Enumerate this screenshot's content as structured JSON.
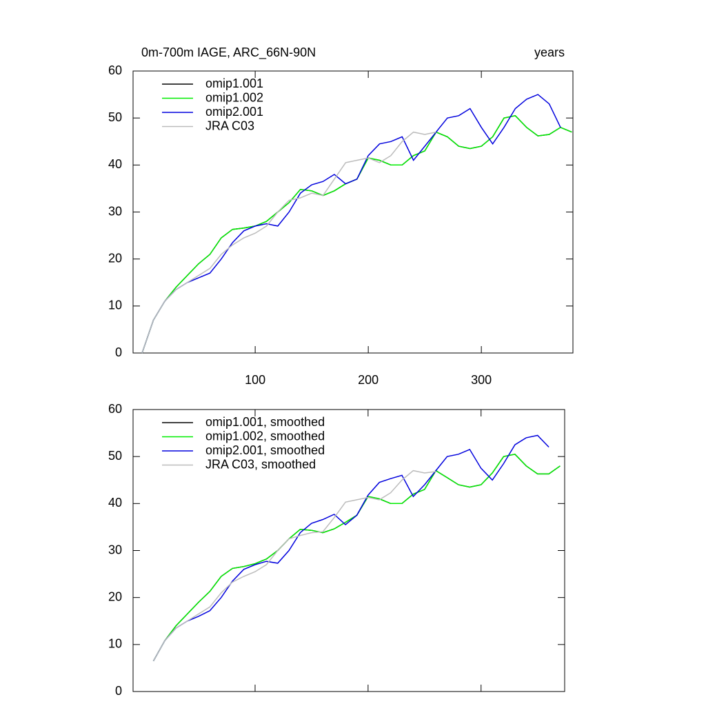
{
  "chart_data": [
    {
      "type": "line",
      "title": "0m-700m IAGE, ARC_66N-90N",
      "units_label": "years",
      "x": [
        0,
        10,
        20,
        30,
        40,
        50,
        60,
        70,
        80,
        90,
        100,
        110,
        120,
        130,
        140,
        150,
        160,
        170,
        180,
        190,
        200,
        210,
        220,
        230,
        240,
        250,
        260,
        270,
        280,
        290,
        300,
        310,
        320,
        330,
        340,
        350,
        360,
        370,
        380
      ],
      "series": [
        {
          "name": "omip1.001",
          "color": "#000000",
          "values": [
            0,
            7,
            11,
            14,
            16.5,
            19,
            21,
            24.5,
            26.3,
            26.6,
            27,
            28,
            30,
            32,
            34.8,
            34.5,
            33.5,
            34.5,
            36,
            37,
            41.5,
            41,
            40,
            40,
            42,
            43,
            47,
            46,
            44,
            43.5,
            44,
            46,
            50,
            50.5,
            48,
            46.2,
            46.5,
            48,
            47
          ]
        },
        {
          "name": "omip1.002",
          "color": "#00ee00",
          "values": [
            0,
            7,
            11,
            14,
            16.5,
            19,
            21,
            24.5,
            26.3,
            26.6,
            27,
            28,
            30,
            32,
            34.8,
            34.5,
            33.5,
            34.5,
            36,
            37,
            41.5,
            41,
            40,
            40,
            42,
            43,
            47,
            46,
            44,
            43.5,
            44,
            46,
            50,
            50.5,
            48,
            46.2,
            46.5,
            48,
            47
          ]
        },
        {
          "name": "omip2.001",
          "color": "#0000dd",
          "values": [
            0,
            7,
            11,
            13.5,
            15,
            16,
            17,
            20,
            23.5,
            26,
            27,
            27.5,
            27,
            30,
            34,
            35.8,
            36.5,
            38,
            36,
            37,
            42,
            44.5,
            45,
            46,
            41,
            44,
            47,
            50,
            50.5,
            52,
            48,
            44.5,
            48,
            52,
            54,
            55,
            53,
            48,
            null
          ]
        },
        {
          "name": "JRA C03",
          "color": "#bbbbbb",
          "values": [
            0,
            7,
            11,
            13.5,
            15,
            16.5,
            18,
            21,
            23,
            24.5,
            25.5,
            27,
            30,
            32.5,
            33,
            34,
            33.5,
            37,
            40.5,
            41,
            41.5,
            40.5,
            42,
            45,
            47,
            46.5,
            47,
            null,
            null,
            null,
            null,
            null,
            null,
            null,
            null,
            null,
            null,
            null,
            null
          ]
        }
      ],
      "xlim": [
        -8,
        381
      ],
      "ylim": [
        0,
        60
      ],
      "xticks": [
        100,
        200,
        300
      ],
      "yticks": [
        0,
        10,
        20,
        30,
        40,
        50,
        60
      ],
      "xtick_labels": true,
      "legend": "top-left"
    },
    {
      "type": "line",
      "x": [
        0,
        10,
        20,
        30,
        40,
        50,
        60,
        70,
        80,
        90,
        100,
        110,
        120,
        130,
        140,
        150,
        160,
        170,
        180,
        190,
        200,
        210,
        220,
        230,
        240,
        250,
        260,
        270,
        280,
        290,
        300,
        310,
        320,
        330,
        340,
        350,
        360,
        370,
        380
      ],
      "series": [
        {
          "name": "omip1.001, smoothed",
          "color": "#000000",
          "values": [
            null,
            6.5,
            10.8,
            14,
            16.5,
            19,
            21.3,
            24.5,
            26.2,
            26.6,
            27.2,
            28.2,
            30,
            32.5,
            34.5,
            34.3,
            33.8,
            34.6,
            36,
            37.5,
            41.5,
            41,
            40,
            40,
            42,
            43,
            47,
            45.5,
            44,
            43.5,
            44,
            46.5,
            50,
            50.5,
            48,
            46.3,
            46.3,
            48,
            null
          ]
        },
        {
          "name": "omip1.002, smoothed",
          "color": "#00ee00",
          "values": [
            null,
            6.5,
            10.8,
            14,
            16.5,
            19,
            21.3,
            24.5,
            26.2,
            26.6,
            27.2,
            28.2,
            30,
            32.5,
            34.5,
            34.3,
            33.8,
            34.6,
            36,
            37.5,
            41.5,
            41,
            40,
            40,
            42,
            43,
            47,
            45.5,
            44,
            43.5,
            44,
            46.5,
            50,
            50.5,
            48,
            46.3,
            46.3,
            48,
            null
          ]
        },
        {
          "name": "omip2.001, smoothed",
          "color": "#0000dd",
          "values": [
            null,
            6.5,
            10.8,
            13.5,
            15,
            16,
            17.2,
            20,
            23.5,
            26,
            27,
            27.7,
            27.3,
            30,
            33.8,
            35.8,
            36.6,
            37.7,
            35.5,
            37.5,
            41.8,
            44.5,
            45.3,
            46,
            41.5,
            44,
            47,
            50,
            50.5,
            51.5,
            47.5,
            45,
            48.5,
            52.5,
            54,
            54.5,
            52,
            null,
            null
          ]
        },
        {
          "name": "JRA C03, smoothed",
          "color": "#bbbbbb",
          "values": [
            null,
            6.5,
            10.8,
            13.5,
            15,
            16.5,
            18,
            21,
            23.3,
            24.5,
            25.5,
            27,
            30,
            32.5,
            33.2,
            33.8,
            34,
            37,
            40.3,
            40.8,
            41.3,
            40.8,
            42.3,
            45,
            47,
            46.5,
            46.8,
            null,
            null,
            null,
            null,
            null,
            null,
            null,
            null,
            null,
            null,
            null,
            null
          ]
        }
      ],
      "xlim": [
        -8,
        374
      ],
      "ylim": [
        0,
        60
      ],
      "xticks": [
        100,
        200,
        300
      ],
      "yticks": [
        0,
        10,
        20,
        30,
        40,
        50,
        60
      ],
      "xtick_labels": false,
      "legend": "top-left"
    }
  ]
}
